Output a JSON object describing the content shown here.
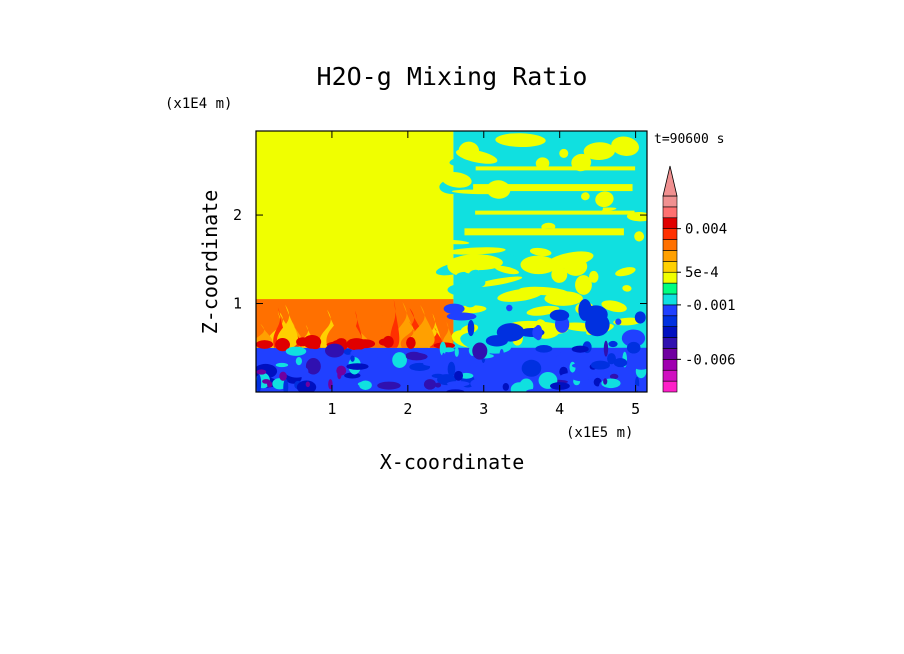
{
  "chart_data": {
    "type": "heatmap",
    "title": "H2O-g Mixing Ratio",
    "xlabel": "X-coordinate",
    "ylabel": "Z-coordinate",
    "x_unit": "(x1E5 m)",
    "y_unit": "(x1E4 m)",
    "time_label": "t=90600 s",
    "xlim": [
      0.0,
      5.15
    ],
    "ylim": [
      0.0,
      2.95
    ],
    "x_ticks": [
      1,
      2,
      3,
      4,
      5
    ],
    "x_tick_labels": [
      "1",
      "2",
      "3",
      "4",
      "5"
    ],
    "y_ticks": [
      1,
      2
    ],
    "y_tick_labels": [
      "1",
      "2"
    ],
    "colorbar": {
      "levels": [
        -0.009,
        -0.008,
        -0.007,
        -0.006,
        -0.005,
        -0.004,
        -0.003,
        -0.002,
        -0.001,
        -0.0005,
        0,
        0.0005,
        0.001,
        0.002,
        0.003,
        0.004,
        0.005,
        0.006
      ],
      "colors": [
        "#ff20c8",
        "#d010c0",
        "#a000b0",
        "#7000a0",
        "#3010b0",
        "#0010c0",
        "#0030e0",
        "#2040ff",
        "#10e0e0",
        "#00ff80",
        "#f0ff00",
        "#ffd000",
        "#ffa000",
        "#ff7000",
        "#ff3000",
        "#e00000",
        "#ff7070",
        "#f09090"
      ],
      "tick_values": [
        0.004,
        0.0005,
        -0.001,
        -0.006
      ],
      "tick_labels": [
        "0.004",
        "5e-4",
        "-0.001",
        "-0.006"
      ],
      "extend": "max"
    },
    "regions": [
      {
        "name": "upper-left-background",
        "x_range": [
          0.0,
          2.6
        ],
        "z_range": [
          0.0,
          2.95
        ],
        "value": 0
      },
      {
        "name": "upper-right-background",
        "x_range": [
          2.6,
          5.15
        ],
        "z_range": [
          0.0,
          2.95
        ],
        "value": -0.0007
      },
      {
        "name": "warm-plumes-left",
        "x_range": [
          0.0,
          2.6
        ],
        "z_range": [
          0.5,
          1.05
        ],
        "value": 0.002
      },
      {
        "name": "bottom-boundary-layer",
        "x_range": [
          0.0,
          5.15
        ],
        "z_range": [
          0.0,
          0.5
        ],
        "value": -0.002
      }
    ]
  }
}
